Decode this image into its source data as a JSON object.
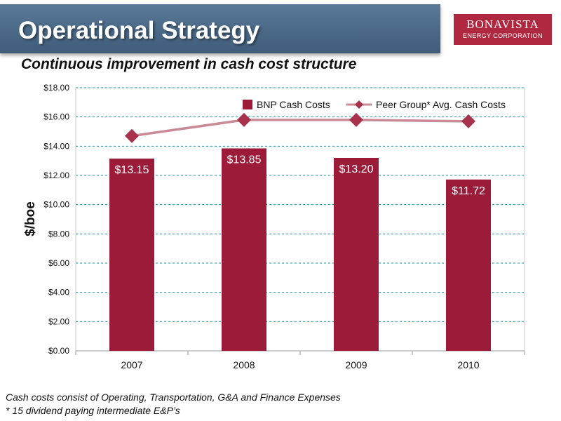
{
  "header": {
    "title": "Operational Strategy",
    "subtitle": "Continuous improvement in cash cost structure"
  },
  "logo": {
    "line1": "BONAVISTA",
    "line2": "ENERGY CORPORATION",
    "color": "#b0283f"
  },
  "chart_data": {
    "type": "bar",
    "title": "",
    "xlabel": "",
    "ylabel": "$/boe",
    "ylim": [
      0,
      18
    ],
    "ytick_values": [
      0,
      2,
      4,
      6,
      8,
      10,
      12,
      14,
      16,
      18
    ],
    "ytick_labels": [
      "$0.00",
      "$2.00",
      "$4.00",
      "$6.00",
      "$8.00",
      "$10.00",
      "$12.00",
      "$14.00",
      "$16.00",
      "$18.00"
    ],
    "categories": [
      "2007",
      "2008",
      "2009",
      "2010"
    ],
    "grid": true,
    "legend_position": "top-right",
    "series": [
      {
        "name": "BNP Cash Costs",
        "kind": "bar",
        "color": "#9b1b38",
        "values": [
          13.15,
          13.85,
          13.2,
          11.72
        ],
        "data_labels": [
          "$13.15",
          "$13.85",
          "$13.20",
          "$11.72"
        ]
      },
      {
        "name": "Peer Group* Avg. Cash Costs",
        "kind": "line",
        "color": "#c98a96",
        "marker_color": "#a8324b",
        "values": [
          14.7,
          15.8,
          15.8,
          15.7
        ]
      }
    ]
  },
  "footnotes": {
    "line1": "Cash costs consist of Operating, Transportation, G&A and Finance Expenses",
    "line2": "* 15 dividend paying intermediate E&P’s"
  }
}
